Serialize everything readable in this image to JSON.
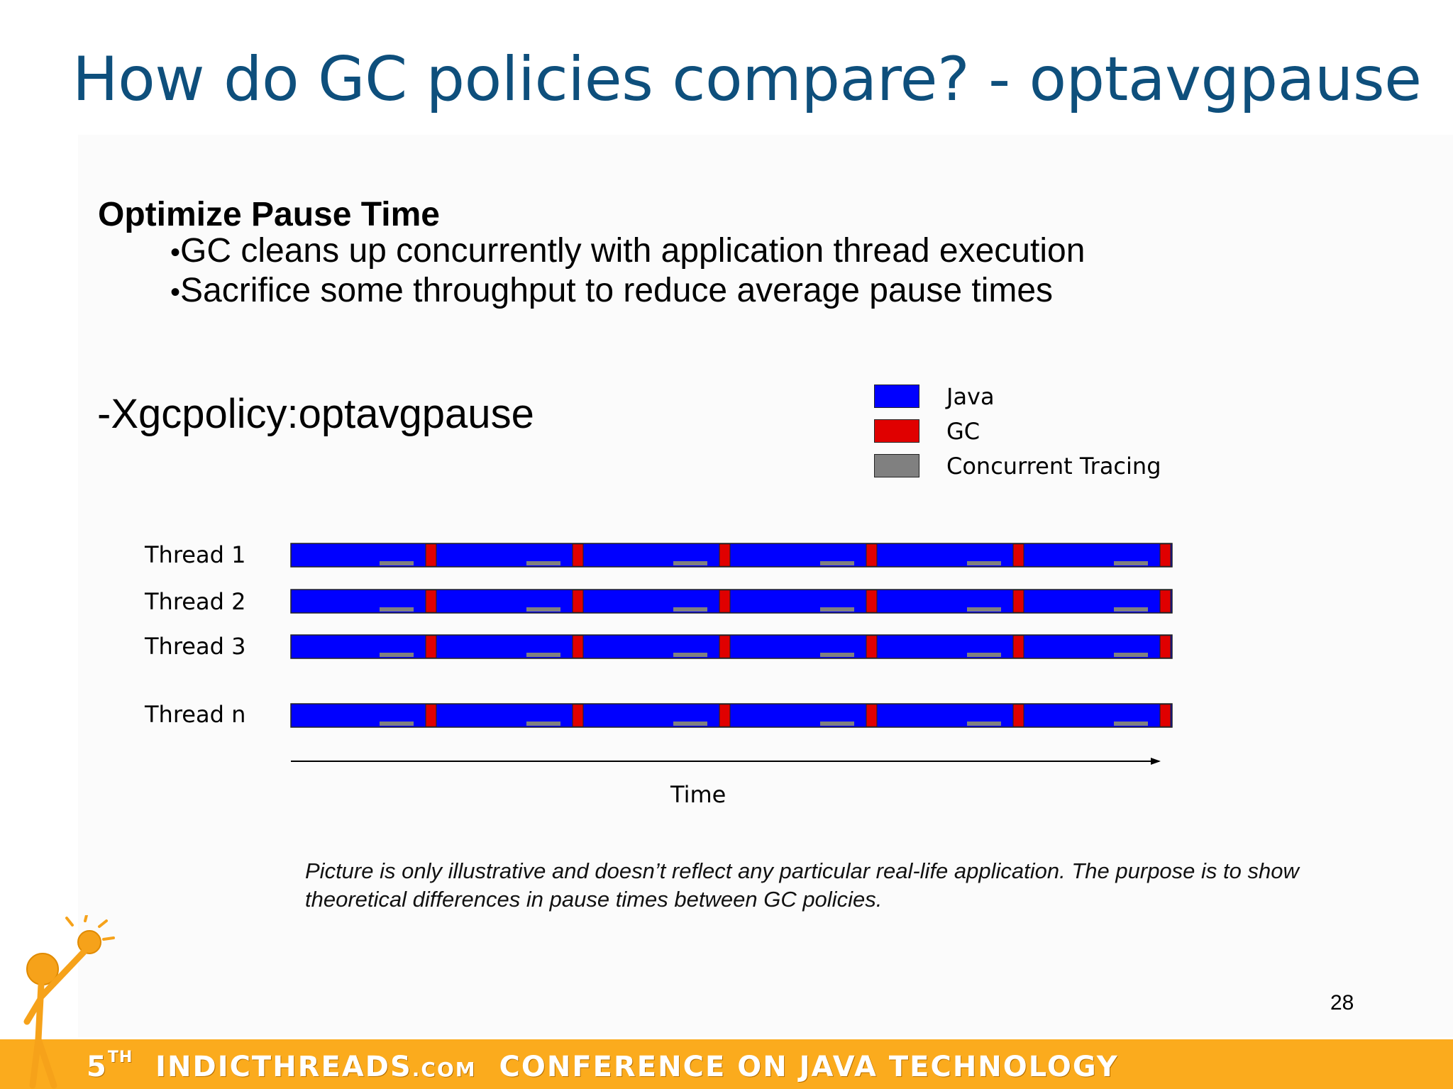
{
  "slide": {
    "title": "How do GC policies compare? - optavgpause",
    "subheading": "Optimize Pause Time",
    "bullets": [
      "GC cleans up concurrently with application thread execution",
      "Sacrifice some throughput to reduce average pause times"
    ],
    "option": "-Xgcpolicy:optavgpause",
    "note": "Picture is only illustrative and doesn’t reflect any particular real-life application. The purpose is to show theoretical differences in pause times between GC policies.",
    "page_number": "28"
  },
  "legend": [
    {
      "label": "Java",
      "color": "#0000ff"
    },
    {
      "label": "GC",
      "color": "#e00000"
    },
    {
      "label": "Concurrent Tracing",
      "color": "#808080"
    }
  ],
  "diagram": {
    "threads": [
      "Thread 1",
      "Thread 2",
      "Thread 3",
      "Thread n"
    ],
    "segments_per_thread": 6,
    "axis_label": "Time"
  },
  "footer": {
    "number": "5",
    "suffix": "TH",
    "brand": "INDICTHREADS",
    "domain": ".COM",
    "rest": "CONFERENCE ON JAVA TECHNOLOGY"
  }
}
